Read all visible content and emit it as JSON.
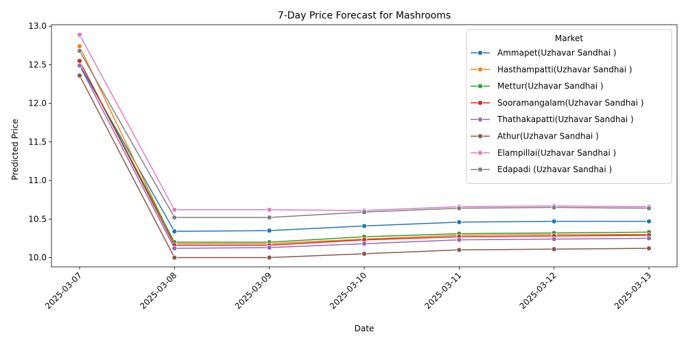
{
  "chart_data": {
    "type": "line",
    "title": "7-Day Price Forecast for Mashrooms",
    "xlabel": "Date",
    "ylabel": "Predicted Price",
    "x": [
      "2025-03-07",
      "2025-03-08",
      "2025-03-09",
      "2025-03-10",
      "2025-03-11",
      "2025-03-12",
      "2025-03-13"
    ],
    "ylim": [
      9.88,
      13.02
    ],
    "yticks": [
      "10.0",
      "10.5",
      "11.0",
      "11.5",
      "12.0",
      "12.5",
      "13.0"
    ],
    "grid": false,
    "legend": {
      "title": "Market",
      "position": "top-right"
    },
    "series": [
      {
        "name": "Ammapet(Uzhavar Sandhai )",
        "color": "#1f77b4",
        "values": [
          12.5,
          10.34,
          10.35,
          10.41,
          10.46,
          10.47,
          10.47
        ]
      },
      {
        "name": "Hasthampatti(Uzhavar Sandhai )",
        "color": "#ff7f0e",
        "values": [
          12.74,
          10.18,
          10.18,
          10.24,
          10.29,
          10.3,
          10.3
        ]
      },
      {
        "name": "Mettur(Uzhavar Sandhai )",
        "color": "#2ca02c",
        "values": [
          12.55,
          10.2,
          10.2,
          10.27,
          10.31,
          10.32,
          10.33
        ]
      },
      {
        "name": "Sooramangalam(Uzhavar Sandhai )",
        "color": "#d62728",
        "values": [
          12.55,
          10.16,
          10.16,
          10.23,
          10.27,
          10.28,
          10.29
        ]
      },
      {
        "name": "Thathakapatti(Uzhavar Sandhai )",
        "color": "#9467bd",
        "values": [
          12.49,
          10.12,
          10.13,
          10.18,
          10.23,
          10.24,
          10.25
        ]
      },
      {
        "name": "Athur(Uzhavar Sandhai )",
        "color": "#8c564b",
        "values": [
          12.36,
          10.0,
          10.0,
          10.05,
          10.1,
          10.11,
          10.12
        ]
      },
      {
        "name": "Elampillai(Uzhavar Sandhai )",
        "color": "#e377c2",
        "values": [
          12.89,
          10.62,
          10.62,
          10.61,
          10.66,
          10.67,
          10.66
        ]
      },
      {
        "name": "Edapadi (Uzhavar Sandhai )",
        "color": "#7f7f7f",
        "values": [
          12.68,
          10.52,
          10.52,
          10.59,
          10.64,
          10.65,
          10.64
        ]
      }
    ]
  }
}
